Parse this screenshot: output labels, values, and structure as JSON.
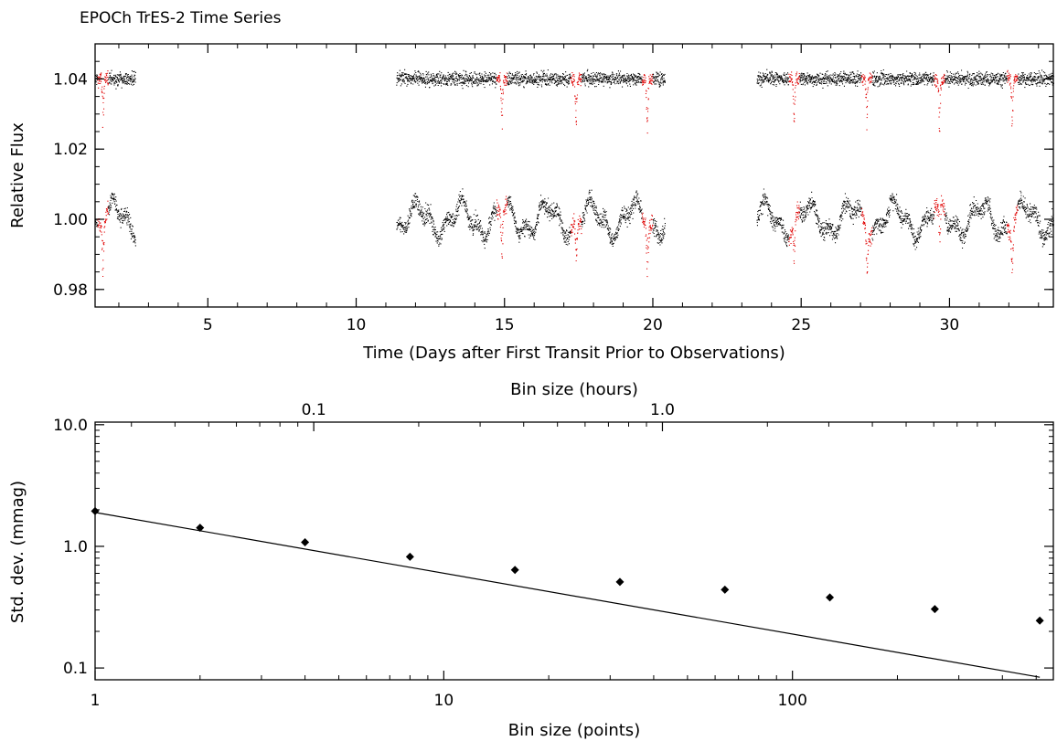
{
  "chart_data": [
    {
      "type": "scatter",
      "title": "EPOCh TrES-2 Time Series",
      "xlabel": "Time (Days after First Transit Prior to Observations)",
      "ylabel": "Relative Flux",
      "xlim": [
        1.2,
        33.5
      ],
      "ylim": [
        0.975,
        1.05
      ],
      "xticks": [
        5,
        10,
        15,
        20,
        25,
        30
      ],
      "xtick_labels": [
        "5",
        "10",
        "15",
        "20",
        "25",
        "30"
      ],
      "yticks": [
        0.98,
        1.0,
        1.02,
        1.04
      ],
      "ytick_labels": [
        "0.98",
        "1.00",
        "1.02",
        "1.04"
      ],
      "series": [
        {
          "color": "#000000",
          "role": "out-of-transit",
          "segments": [
            [
              1.2,
              2.55
            ],
            [
              11.35,
              20.4
            ],
            [
              23.5,
              33.5
            ]
          ],
          "offsets": [
            1.04,
            1.0
          ]
        },
        {
          "color": "#e00000",
          "role": "in-transit",
          "transit_times": [
            1.45,
            14.9,
            17.4,
            19.8,
            24.75,
            27.2,
            29.65,
            32.1
          ],
          "depth": 0.016
        }
      ]
    },
    {
      "type": "scatter",
      "xlabel": "Bin size (points)",
      "ylabel": "Std. dev. (mmag)",
      "top_xlabel": "Bin size (hours)",
      "xscale": "log",
      "yscale": "log",
      "xlim": [
        1,
        560
      ],
      "ylim": [
        0.08,
        10.5
      ],
      "xticks": [
        1,
        10,
        100
      ],
      "xtick_labels": [
        "1",
        "10",
        "100"
      ],
      "yticks": [
        0.1,
        1.0,
        10.0
      ],
      "ytick_labels": [
        "0.1",
        "1.0",
        "10.0"
      ],
      "top_ticks": [
        0.1,
        1.0
      ],
      "top_tick_labels": [
        "0.1",
        "1.0"
      ],
      "x": [
        1,
        2,
        4,
        8,
        16,
        32,
        64,
        128,
        256,
        512
      ],
      "y": [
        1.95,
        1.42,
        1.08,
        0.82,
        0.64,
        0.51,
        0.44,
        0.38,
        0.305,
        0.245
      ],
      "line": {
        "x": [
          1,
          512
        ],
        "y": [
          1.9,
          0.084
        ]
      },
      "top_axis_scale": {
        "hours_at_bin_1": 0.0236
      }
    }
  ]
}
